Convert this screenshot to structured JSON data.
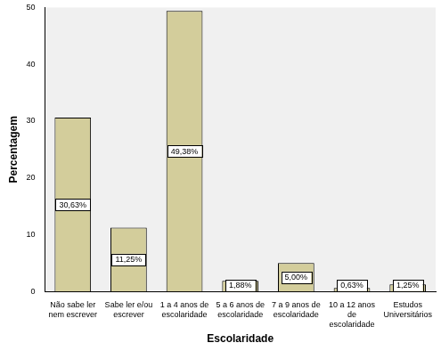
{
  "chart_data": {
    "type": "bar",
    "x_label": "Escolaridade",
    "y_label": "Percentagem",
    "categories": [
      "Não sabe ler nem escrever",
      "Sabe ler e/ou escrever",
      "1 a 4 anos de escolaridade",
      "5 a 6 anos de escolaridade",
      "7 a 9 anos de escolaridade",
      "10 a 12 anos de escolaridade",
      "Estudos Universitários"
    ],
    "values": [
      30.63,
      11.25,
      49.38,
      1.88,
      5.0,
      0.63,
      1.25
    ],
    "value_labels": [
      "30,63%",
      "11,25%",
      "49,38%",
      "1,88%",
      "5,00%",
      "0,63%",
      "1,25%"
    ],
    "data_labels": true,
    "color": "#d3cd9b",
    "ylim": [
      0,
      50
    ],
    "yticks": [
      0,
      10,
      20,
      30,
      40,
      50
    ],
    "grid": false
  }
}
